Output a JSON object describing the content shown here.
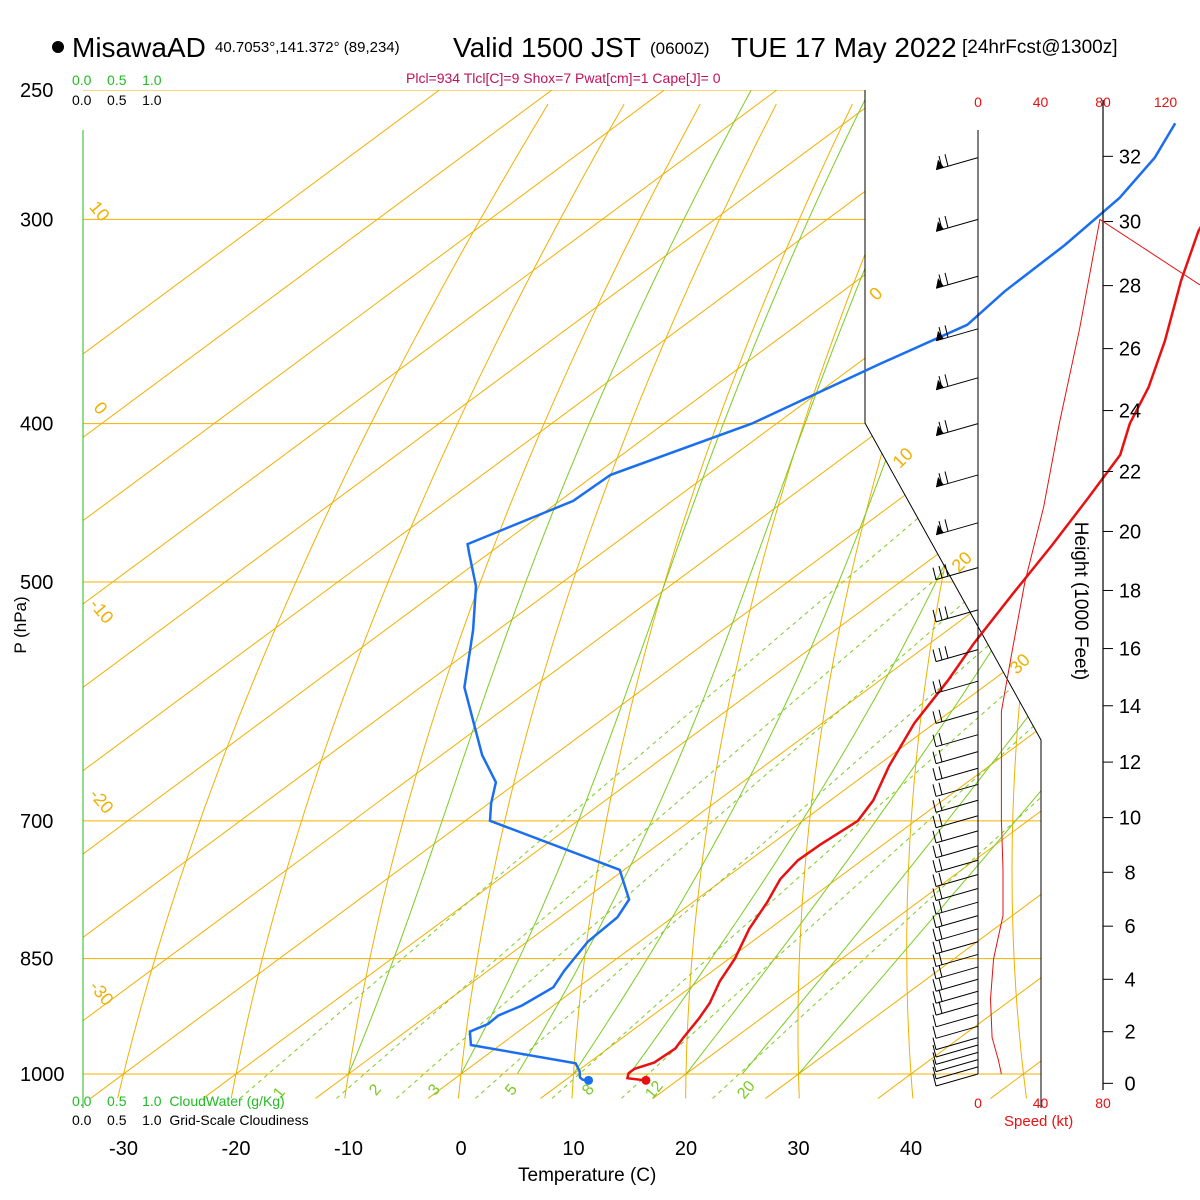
{
  "header": {
    "station": "MisawaAD",
    "coords": "40.7053°,141.372° (89,234)",
    "valid_prefix": "Valid 1500 JST",
    "valid_z": "(0600Z)",
    "valid_date": "TUE 17 May 2022",
    "fcst": "[24hrFcst@1300z]",
    "indices": "Plcl=934 Tlcl[C]=9 Shox=7 Pwat[cm]=1 Cape[J]= 0"
  },
  "colors": {
    "temp": "#e81010",
    "dew": "#1a6ef0",
    "isotherm": "#f0b000",
    "mixing": "#7acc20",
    "accent_red": "#e81010",
    "cloud_green": "#22bb22",
    "indices": "#c0105a"
  },
  "labels": {
    "ylabel": "P (hPa)",
    "xlabel": "Temperature (C)",
    "height_label": "Height (1000 Feet)",
    "speed_label": "Speed (kt)",
    "cloudwater": "CloudWater (g/Kg)",
    "cloudiness": "Grid-Scale Cloudiness",
    "scale_top_green": [
      "0.0",
      "0.5",
      "1.0"
    ],
    "scale_top_black": [
      "0.0",
      "0.5",
      "1.0"
    ],
    "scale_bottom_green": [
      "0.0",
      "0.5",
      "1.0"
    ],
    "scale_bottom_black": [
      "0.0",
      "0.5",
      "1.0"
    ]
  },
  "chart_data": {
    "type": "line",
    "title": "MisawaAD Valid 1500 JST (0600Z) TUE 17 May 2022",
    "xlabel": "Temperature (C)",
    "ylabel": "P (hPa)",
    "xlim": [
      -35,
      45
    ],
    "ylim": [
      1035,
      250
    ],
    "x_ticks": [
      -30,
      -20,
      -10,
      0,
      10,
      20,
      30,
      40
    ],
    "y_ticks": [
      250,
      300,
      400,
      500,
      700,
      850,
      1000
    ],
    "isotherm_labels": [
      "10",
      "0",
      "-10",
      "-20",
      "-30",
      "0",
      "10",
      "20",
      "30"
    ],
    "mixing_ratio_labels": [
      "1",
      "2",
      "3",
      "5",
      "8",
      "12",
      "20"
    ],
    "speed_ticks": [
      "0",
      "40",
      "80",
      "120"
    ],
    "height_ticks": [
      0,
      2,
      4,
      6,
      8,
      10,
      12,
      14,
      16,
      18,
      20,
      22,
      24,
      26,
      28,
      30,
      32
    ],
    "series": [
      {
        "name": "Temperature",
        "points": [
          [
            17.2,
            1009
          ],
          [
            15.3,
            1006
          ],
          [
            14.8,
            999
          ],
          [
            14.8,
            993
          ],
          [
            15.8,
            984
          ],
          [
            16.0,
            965
          ],
          [
            15.4,
            950
          ],
          [
            14.5,
            925
          ],
          [
            13.6,
            905
          ],
          [
            11.9,
            878
          ],
          [
            10.5,
            850
          ],
          [
            8.2,
            815
          ],
          [
            6.6,
            785
          ],
          [
            5.0,
            760
          ],
          [
            4.3,
            740
          ],
          [
            4.4,
            724
          ],
          [
            4.9,
            700
          ],
          [
            3.8,
            680
          ],
          [
            1.1,
            648
          ],
          [
            -1.8,
            610
          ],
          [
            -3.9,
            575
          ],
          [
            -6.1,
            545
          ],
          [
            -8.6,
            508
          ],
          [
            -10.9,
            475
          ],
          [
            -13.3,
            445
          ],
          [
            -15.7,
            418
          ],
          [
            -18.6,
            400
          ],
          [
            -21.3,
            380
          ],
          [
            -25.4,
            356
          ],
          [
            -31.2,
            327
          ],
          [
            -35.6,
            305
          ],
          [
            -39.7,
            280
          ],
          [
            -44.2,
            262
          ]
        ]
      },
      {
        "name": "Dew Point",
        "points": [
          [
            12.1,
            1009
          ],
          [
            11.5,
            1008
          ],
          [
            11.0,
            1005
          ],
          [
            10.2,
            996
          ],
          [
            8.9,
            985
          ],
          [
            -2.6,
            960
          ],
          [
            -4.3,
            942
          ],
          [
            -3.6,
            932
          ],
          [
            -3.7,
            921
          ],
          [
            -2.8,
            908
          ],
          [
            -2.2,
            885
          ],
          [
            -3.2,
            865
          ],
          [
            -4.6,
            830
          ],
          [
            -4.9,
            802
          ],
          [
            -6.0,
            782
          ],
          [
            -10.4,
            750
          ],
          [
            -27.8,
            700
          ],
          [
            -29.8,
            683
          ],
          [
            -31.9,
            663
          ],
          [
            -36.4,
            638
          ],
          [
            -46.1,
            580
          ],
          [
            -52.2,
            535
          ],
          [
            -57.2,
            503
          ],
          [
            -61.8,
            480
          ],
          [
            -63.0,
            474
          ],
          [
            -58.8,
            446
          ],
          [
            -58.6,
            430
          ],
          [
            -52.2,
            400
          ],
          [
            -48.0,
            368
          ],
          [
            -44.9,
            348
          ],
          [
            -45.6,
            332
          ],
          [
            -45.8,
            311
          ],
          [
            -46.6,
            291
          ],
          [
            -48.3,
            275
          ],
          [
            -50.6,
            262
          ]
        ]
      },
      {
        "name": "Speed (kt)",
        "points": [
          [
            15,
            1000
          ],
          [
            13,
            980
          ],
          [
            9,
            950
          ],
          [
            8,
            900
          ],
          [
            10,
            850
          ],
          [
            16,
            800
          ],
          [
            16,
            750
          ],
          [
            15,
            700
          ],
          [
            15,
            650
          ],
          [
            15,
            600
          ],
          [
            22,
            550
          ],
          [
            30,
            500
          ],
          [
            42,
            450
          ],
          [
            52,
            400
          ],
          [
            65,
            350
          ],
          [
            78,
            300
          ]
        ]
      }
    ]
  }
}
